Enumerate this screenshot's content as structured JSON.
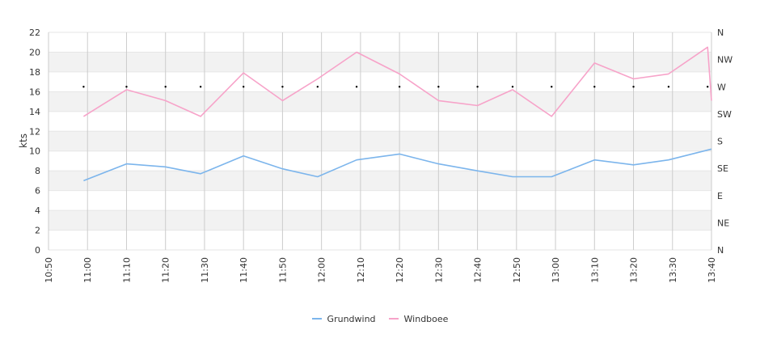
{
  "chart_data": {
    "type": "line",
    "ylabel": "kts",
    "ylim": [
      0,
      22
    ],
    "yticks": [
      "0",
      "2",
      "4",
      "6",
      "8",
      "10",
      "12",
      "14",
      "16",
      "18",
      "20",
      "22"
    ],
    "y2ticks": [
      "N",
      "NE",
      "E",
      "SE",
      "S",
      "SW",
      "W",
      "NW",
      "N"
    ],
    "xlim": [
      "10:50",
      "13:40"
    ],
    "xticks": [
      "10:50",
      "11:00",
      "11:10",
      "11:20",
      "11:30",
      "11:40",
      "11:50",
      "12:00",
      "12:10",
      "12:20",
      "12:30",
      "12:40",
      "12:50",
      "13:00",
      "13:10",
      "13:20",
      "13:30",
      "13:40"
    ],
    "grid": true,
    "legend_position": "bottom-center",
    "series": [
      {
        "name": "Grundwind",
        "color": "#7cb5ec",
        "x": [
          "10:59",
          "11:10",
          "11:20",
          "11:29",
          "11:40",
          "11:50",
          "11:59",
          "12:09",
          "12:20",
          "12:30",
          "12:40",
          "12:49",
          "12:59",
          "13:10",
          "13:20",
          "13:29",
          "13:40"
        ],
        "values": [
          7.0,
          8.7,
          8.4,
          7.7,
          9.5,
          8.2,
          7.4,
          9.1,
          9.7,
          8.7,
          8.0,
          7.4,
          7.4,
          9.1,
          8.6,
          9.1,
          10.2
        ]
      },
      {
        "name": "Windboee",
        "color": "#f7a3c9",
        "x": [
          "10:59",
          "11:10",
          "11:20",
          "11:29",
          "11:40",
          "11:50",
          "11:59",
          "12:09",
          "12:20",
          "12:30",
          "12:40",
          "12:49",
          "12:59",
          "13:10",
          "13:20",
          "13:29",
          "13:39",
          "13:40"
        ],
        "values": [
          13.5,
          16.2,
          15.1,
          13.5,
          17.9,
          15.1,
          17.3,
          20.0,
          17.8,
          15.1,
          14.6,
          16.2,
          13.5,
          18.9,
          17.3,
          17.8,
          20.5,
          15.1
        ]
      }
    ],
    "direction_points": {
      "color": "#000000",
      "x": [
        "10:59",
        "11:10",
        "11:20",
        "11:29",
        "11:40",
        "11:50",
        "11:59",
        "12:09",
        "12:20",
        "12:30",
        "12:40",
        "12:49",
        "12:59",
        "13:10",
        "13:20",
        "13:29",
        "13:39"
      ],
      "values": [
        "W",
        "W",
        "W",
        "W",
        "W",
        "W",
        "W",
        "W",
        "W",
        "W",
        "W",
        "W",
        "W",
        "W",
        "W",
        "W",
        "W"
      ]
    }
  }
}
